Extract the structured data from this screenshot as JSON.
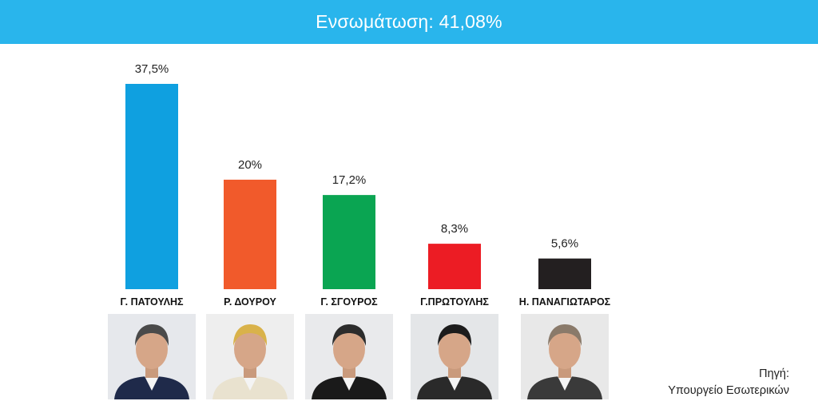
{
  "header": {
    "title": "Ενσωμάτωση: 41,08%"
  },
  "chart_data": {
    "type": "bar",
    "categories": [
      "Γ. ΠΑΤΟΥΛΗΣ",
      "Ρ. ΔΟΥΡΟΥ",
      "Γ. ΣΓΟΥΡΟΣ",
      "Γ.ΠΡΩΤΟΥΛΗΣ",
      "Η. ΠΑΝΑΓΙΩΤΑΡΟΣ"
    ],
    "values": [
      37.5,
      20,
      17.2,
      8.3,
      5.6
    ],
    "value_labels": [
      "37,5%",
      "20%",
      "17,2%",
      "8,3%",
      "5,6%"
    ],
    "colors": [
      "#0fa0e0",
      "#f15a2b",
      "#0aa552",
      "#ec1c24",
      "#231f20"
    ],
    "ylim": [
      0,
      40
    ],
    "grid": false
  },
  "candidates": [
    {
      "name": "Γ. ΠΑΤΟΥΛΗΣ",
      "photo_icon": "candidate-photo-icon",
      "suit": "#1f2a4a",
      "hair": "#4a4a4a",
      "bg": "#e6e8ec"
    },
    {
      "name": "Ρ. ΔΟΥΡΟΥ",
      "photo_icon": "candidate-photo-icon",
      "suit": "#e9e2cf",
      "hair": "#d9b24a",
      "bg": "#eeeeee"
    },
    {
      "name": "Γ. ΣΓΟΥΡΟΣ",
      "photo_icon": "candidate-photo-icon",
      "suit": "#1a1a1a",
      "hair": "#2c2c2c",
      "bg": "#e9eaec"
    },
    {
      "name": "Γ.ΠΡΩΤΟΥΛΗΣ",
      "photo_icon": "candidate-photo-icon",
      "suit": "#2a2a2a",
      "hair": "#1c1c1c",
      "bg": "#e4e6e8"
    },
    {
      "name": "Η. ΠΑΝΑΓΙΩΤΑΡΟΣ",
      "photo_icon": "candidate-photo-icon",
      "suit": "#3a3a3a",
      "hair": "#8a7a6a",
      "bg": "#e8e8e8"
    }
  ],
  "source": {
    "line1": "Πηγή:",
    "line2": "Υπουργείο Εσωτερικών"
  }
}
